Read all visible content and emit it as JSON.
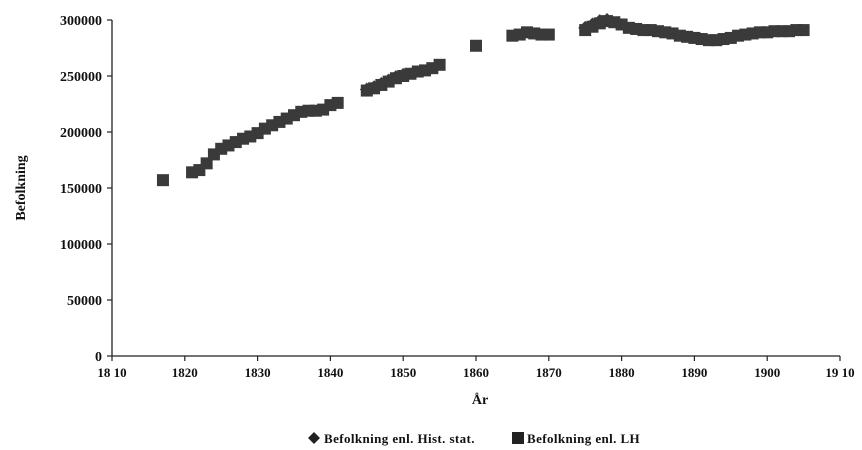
{
  "chart_data": {
    "type": "scatter",
    "title": "",
    "xlabel": "År",
    "ylabel": "Befolkning",
    "xlim": [
      1810,
      1910
    ],
    "ylim": [
      0,
      300000
    ],
    "x_ticks": [
      1810,
      1820,
      1830,
      1840,
      1850,
      1860,
      1870,
      1880,
      1890,
      1900,
      1910
    ],
    "x_tick_labels": [
      "18 10",
      "1820",
      "1830",
      "1840",
      "1850",
      "1860",
      "1870",
      "1880",
      "1890",
      "1900",
      "19 10"
    ],
    "y_ticks": [
      0,
      50000,
      100000,
      150000,
      200000,
      250000,
      300000
    ],
    "y_tick_labels": [
      "0",
      "50000",
      "100000",
      "150000",
      "200000",
      "250000",
      "300000"
    ],
    "grid": false,
    "legend_position": "bottom",
    "series": [
      {
        "name": "Befolkning enl. Hist. stat.",
        "marker": "diamond",
        "color": "#3a3a3a",
        "points": [
          [
            1845,
            238000
          ],
          [
            1846,
            240000
          ],
          [
            1847,
            243000
          ],
          [
            1848,
            246000
          ],
          [
            1849,
            249000
          ],
          [
            1850,
            251000
          ],
          [
            1875,
            293000
          ],
          [
            1876,
            296000
          ],
          [
            1877,
            299000
          ],
          [
            1878,
            300000
          ]
        ]
      },
      {
        "name": "Befolkning enl. LH",
        "marker": "square",
        "color": "#3a3a3a",
        "points": [
          [
            1817,
            157000
          ],
          [
            1821,
            164000
          ],
          [
            1822,
            166000
          ],
          [
            1823,
            172000
          ],
          [
            1824,
            180000
          ],
          [
            1825,
            185000
          ],
          [
            1826,
            188000
          ],
          [
            1827,
            191000
          ],
          [
            1828,
            194000
          ],
          [
            1829,
            196000
          ],
          [
            1830,
            199000
          ],
          [
            1831,
            203000
          ],
          [
            1832,
            206000
          ],
          [
            1833,
            209000
          ],
          [
            1834,
            212000
          ],
          [
            1835,
            215000
          ],
          [
            1836,
            218000
          ],
          [
            1837,
            219000
          ],
          [
            1838,
            219000
          ],
          [
            1839,
            220000
          ],
          [
            1840,
            224000
          ],
          [
            1841,
            226000
          ],
          [
            1845,
            237000
          ],
          [
            1846,
            239000
          ],
          [
            1847,
            242000
          ],
          [
            1848,
            245000
          ],
          [
            1849,
            248000
          ],
          [
            1850,
            250000
          ],
          [
            1851,
            252000
          ],
          [
            1852,
            254000
          ],
          [
            1853,
            255000
          ],
          [
            1854,
            257000
          ],
          [
            1855,
            260000
          ],
          [
            1860,
            277000
          ],
          [
            1865,
            286000
          ],
          [
            1866,
            287000
          ],
          [
            1867,
            289000
          ],
          [
            1868,
            288000
          ],
          [
            1869,
            287000
          ],
          [
            1870,
            287000
          ],
          [
            1875,
            291000
          ],
          [
            1876,
            294000
          ],
          [
            1877,
            297000
          ],
          [
            1878,
            299000
          ],
          [
            1879,
            298000
          ],
          [
            1880,
            296000
          ],
          [
            1881,
            293000
          ],
          [
            1882,
            292000
          ],
          [
            1883,
            291000
          ],
          [
            1884,
            291000
          ],
          [
            1885,
            290000
          ],
          [
            1886,
            289000
          ],
          [
            1887,
            288000
          ],
          [
            1888,
            286000
          ],
          [
            1889,
            285000
          ],
          [
            1890,
            284000
          ],
          [
            1891,
            283000
          ],
          [
            1892,
            282000
          ],
          [
            1893,
            282000
          ],
          [
            1894,
            283000
          ],
          [
            1895,
            284000
          ],
          [
            1896,
            286000
          ],
          [
            1897,
            287000
          ],
          [
            1898,
            288000
          ],
          [
            1899,
            289000
          ],
          [
            1900,
            289000
          ],
          [
            1901,
            290000
          ],
          [
            1902,
            290000
          ],
          [
            1903,
            290000
          ],
          [
            1904,
            291000
          ],
          [
            1905,
            291000
          ]
        ]
      }
    ]
  }
}
